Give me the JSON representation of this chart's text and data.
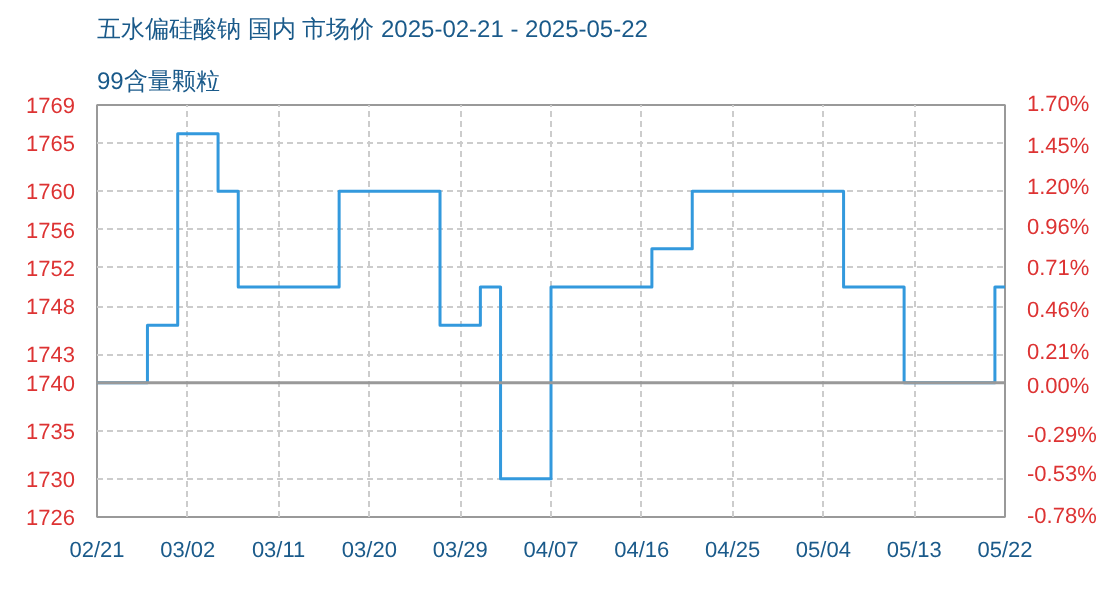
{
  "chart_data": {
    "type": "step",
    "title": "五水偏硅酸钠 国内 市场价 2025-02-21 - 2025-05-22",
    "subtitle": "99含量颗粒",
    "x": [
      "2025-02-21",
      "2025-02-25",
      "2025-02-26",
      "2025-02-28",
      "2025-03-01",
      "2025-03-04",
      "2025-03-05",
      "2025-03-06",
      "2025-03-07",
      "2025-03-16",
      "2025-03-17",
      "2025-03-26",
      "2025-03-27",
      "2025-03-30",
      "2025-03-31",
      "2025-04-01",
      "2025-04-02",
      "2025-04-06",
      "2025-04-07",
      "2025-04-16",
      "2025-04-17",
      "2025-04-20",
      "2025-04-21",
      "2025-05-05",
      "2025-05-06",
      "2025-05-11",
      "2025-05-12",
      "2025-05-20",
      "2025-05-21",
      "2025-05-22"
    ],
    "series": [
      {
        "color": "#3399dd",
        "values": [
          1740,
          1740,
          1746,
          1746,
          1766,
          1766,
          1760,
          1760,
          1750,
          1750,
          1760,
          1760,
          1746,
          1746,
          1750,
          1750,
          1730,
          1730,
          1750,
          1750,
          1754,
          1754,
          1760,
          1760,
          1750,
          1750,
          1740,
          1740,
          1750,
          1750
        ]
      }
    ],
    "xlim": [
      "2025-02-21",
      "2025-05-22"
    ],
    "xticks": [
      {
        "value": "2025-02-21",
        "label": "02/21"
      },
      {
        "value": "2025-03-02",
        "label": "03/02"
      },
      {
        "value": "2025-03-11",
        "label": "03/11"
      },
      {
        "value": "2025-03-20",
        "label": "03/20"
      },
      {
        "value": "2025-03-29",
        "label": "03/29"
      },
      {
        "value": "2025-04-07",
        "label": "04/07"
      },
      {
        "value": "2025-04-16",
        "label": "04/16"
      },
      {
        "value": "2025-04-25",
        "label": "04/25"
      },
      {
        "value": "2025-05-04",
        "label": "05/04"
      },
      {
        "value": "2025-05-13",
        "label": "05/13"
      },
      {
        "value": "2025-05-22",
        "label": "05/22"
      }
    ],
    "ylim": [
      1726,
      1769
    ],
    "yticks": [
      1726,
      1730,
      1735,
      1740,
      1743,
      1748,
      1752,
      1756,
      1760,
      1765,
      1769
    ],
    "y2lim": [
      -0.78,
      1.7
    ],
    "y2ticks": [
      {
        "value": -0.78,
        "label": "-0.78%"
      },
      {
        "value": -0.53,
        "label": "-0.53%"
      },
      {
        "value": -0.29,
        "label": "-0.29%"
      },
      {
        "value": 0,
        "label": "0.00%"
      },
      {
        "value": 0.21,
        "label": "0.21%"
      },
      {
        "value": 0.46,
        "label": "0.46%"
      },
      {
        "value": 0.71,
        "label": "0.71%"
      },
      {
        "value": 0.96,
        "label": "0.96%"
      },
      {
        "value": 1.2,
        "label": "1.20%"
      },
      {
        "value": 1.45,
        "label": "1.45%"
      },
      {
        "value": 1.7,
        "label": "1.70%"
      }
    ],
    "ref_lines": [
      {
        "axis": "y",
        "value": 1740,
        "color": "#999999"
      }
    ],
    "grid": true
  }
}
